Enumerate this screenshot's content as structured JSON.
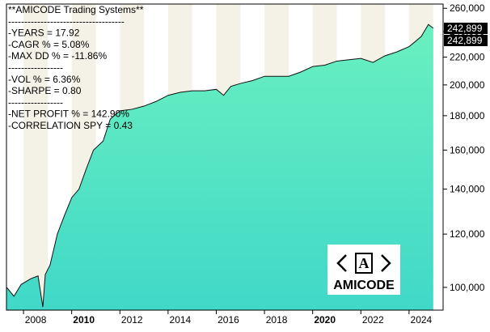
{
  "chart_data": {
    "type": "area",
    "log_scale": true,
    "color_top": "#6af0c0",
    "color_bottom": "#40d8c8",
    "stats_lines": [
      "**AMICODE Trading Systems**",
      "------------------------------------",
      "-YEARS  = 17.92",
      "-CAGR %  = 5.08%",
      "-MAX DD %  = -11.86%",
      "-----------------",
      "-VOL % = 6.36%",
      "-SHARPE = 0.80",
      "-----------------",
      "-NET PROFIT % = 142.90%",
      "-CORRELATION SPY  = 0.43"
    ],
    "annotations": [
      "242,899",
      "242,899"
    ],
    "logo_text": "AMICODE",
    "x": [
      2007.3,
      2007.6,
      2007.9,
      2008.3,
      2008.6,
      2008.8,
      2008.9,
      2009.1,
      2009.4,
      2009.7,
      2010.0,
      2010.3,
      2010.6,
      2010.9,
      2011.3,
      2011.6,
      2012.0,
      2012.5,
      2013.0,
      2013.5,
      2014.0,
      2014.5,
      2015.0,
      2015.5,
      2016.0,
      2016.3,
      2016.6,
      2017.0,
      2017.5,
      2018.0,
      2018.5,
      2019.0,
      2019.5,
      2020.0,
      2020.5,
      2021.0,
      2021.5,
      2022.0,
      2022.5,
      2023.0,
      2023.5,
      2024.0,
      2024.5,
      2024.8,
      2025.0
    ],
    "values": [
      100000,
      97000,
      101000,
      103000,
      104000,
      93500,
      104500,
      108000,
      120000,
      128000,
      136000,
      140000,
      150000,
      160000,
      165000,
      178000,
      183000,
      184000,
      186000,
      189000,
      193000,
      195000,
      196000,
      196000,
      197000,
      193000,
      199000,
      201000,
      203000,
      206000,
      206000,
      206000,
      209000,
      213000,
      214000,
      217000,
      218000,
      219000,
      216000,
      221000,
      224000,
      228000,
      236000,
      246000,
      242899
    ],
    "xlim": [
      2007.29,
      2025.41
    ],
    "xticks": [
      {
        "value": 2008.5,
        "label": "2008"
      },
      {
        "value": 2010.5,
        "label": "2010"
      },
      {
        "value": 2012.5,
        "label": "2012"
      },
      {
        "value": 2014.5,
        "label": "2014"
      },
      {
        "value": 2016.5,
        "label": "2016"
      },
      {
        "value": 2018.5,
        "label": "2018"
      },
      {
        "value": 2020.5,
        "label": "2020"
      },
      {
        "value": 2022.5,
        "label": "2022"
      },
      {
        "value": 2024.5,
        "label": "2024"
      }
    ],
    "bold_xticks": [
      1,
      6
    ],
    "ylim": [
      92500,
      263800
    ],
    "yticks": [
      {
        "value": 100000,
        "label": "100,000"
      },
      {
        "value": 120000,
        "label": "120,000"
      },
      {
        "value": 140000,
        "label": "140,000"
      },
      {
        "value": 160000,
        "label": "160,000"
      },
      {
        "value": 180000,
        "label": "180,000"
      },
      {
        "value": 200000,
        "label": "200,000"
      },
      {
        "value": 220000,
        "label": "220,000"
      },
      {
        "value": 240000,
        "label": "240,000"
      },
      {
        "value": 260000,
        "label": "260,000"
      }
    ]
  }
}
